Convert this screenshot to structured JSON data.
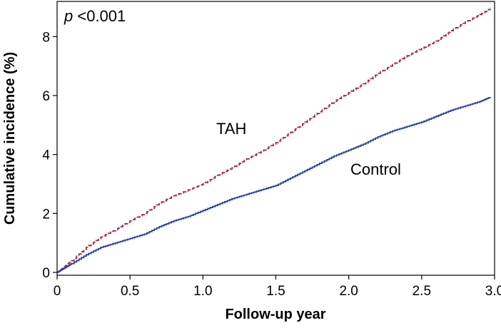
{
  "chart_data": {
    "type": "line",
    "annotation": {
      "prefix": "p",
      "text": " <0.001"
    },
    "xlabel": "Follow-up year",
    "ylabel": "Cumulative incidence (%)",
    "xlim": [
      0,
      3.0
    ],
    "ylim": [
      0,
      9.0
    ],
    "xticks": [
      "0",
      "0.5",
      "1.0",
      "1.5",
      "2.0",
      "2.5",
      "3.0"
    ],
    "yticks": [
      "0",
      "2",
      "4",
      "6",
      "8"
    ],
    "grid": false,
    "legend": "inline labels",
    "series": [
      {
        "name": "TAH",
        "color": "#a0283c",
        "style": "dashed",
        "x": [
          0,
          0.05,
          0.1,
          0.2,
          0.3,
          0.4,
          0.5,
          0.6,
          0.7,
          0.8,
          0.9,
          1.0,
          1.1,
          1.2,
          1.3,
          1.4,
          1.5,
          1.6,
          1.7,
          1.8,
          1.9,
          2.0,
          2.1,
          2.2,
          2.3,
          2.4,
          2.5,
          2.6,
          2.7,
          2.8,
          2.9,
          2.97
        ],
        "values": [
          0.0,
          0.2,
          0.4,
          0.85,
          1.2,
          1.45,
          1.75,
          2.0,
          2.35,
          2.6,
          2.8,
          3.0,
          3.3,
          3.55,
          3.85,
          4.1,
          4.4,
          4.75,
          5.1,
          5.45,
          5.8,
          6.1,
          6.4,
          6.75,
          7.05,
          7.35,
          7.6,
          7.85,
          8.2,
          8.5,
          8.75,
          8.95
        ]
      },
      {
        "name": "Control",
        "color": "#2a3f9e",
        "style": "solid",
        "x": [
          0,
          0.05,
          0.1,
          0.2,
          0.3,
          0.4,
          0.5,
          0.6,
          0.7,
          0.8,
          0.9,
          1.0,
          1.1,
          1.2,
          1.3,
          1.4,
          1.5,
          1.6,
          1.7,
          1.8,
          1.9,
          2.0,
          2.1,
          2.2,
          2.3,
          2.4,
          2.5,
          2.6,
          2.7,
          2.8,
          2.9,
          2.97
        ],
        "values": [
          0.0,
          0.15,
          0.3,
          0.6,
          0.85,
          1.0,
          1.15,
          1.3,
          1.55,
          1.75,
          1.9,
          2.1,
          2.3,
          2.5,
          2.65,
          2.8,
          2.95,
          3.2,
          3.45,
          3.7,
          3.95,
          4.15,
          4.35,
          4.6,
          4.8,
          4.95,
          5.1,
          5.3,
          5.5,
          5.65,
          5.8,
          5.95
        ]
      }
    ]
  }
}
